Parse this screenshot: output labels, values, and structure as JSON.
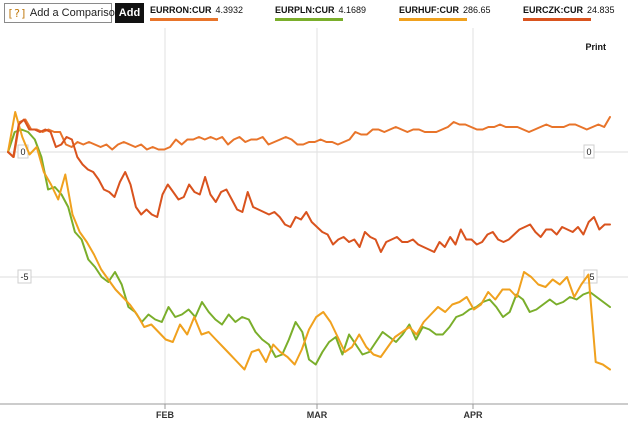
{
  "toolbar": {
    "help_icon": "[?]",
    "compare_placeholder": "Add a Comparison",
    "add_label": "Add",
    "print_label": "Print"
  },
  "legend": [
    {
      "symbol": "EURRON:CUR",
      "value": "4.3932",
      "color": "#e8742a"
    },
    {
      "symbol": "EURPLN:CUR",
      "value": "4.1689",
      "color": "#7aae2b"
    },
    {
      "symbol": "EURHUF:CUR",
      "value": "286.65",
      "color": "#f0a11e"
    },
    {
      "symbol": "EURCZK:CUR",
      "value": "24.835",
      "color": "#d9531e"
    }
  ],
  "chart_data": {
    "type": "line",
    "x_ticks": [
      "FEB",
      "MAR",
      "APR"
    ],
    "y_ticks": [
      0,
      -5
    ],
    "ylim": [
      -10,
      2
    ],
    "grid": true,
    "series": [
      {
        "name": "EURRON:CUR",
        "color": "#e8742a",
        "values": [
          0,
          -0.2,
          1.2,
          1.3,
          0.9,
          0.9,
          0.8,
          0.9,
          0.8,
          0.8,
          0.3,
          0.2,
          0.4,
          0.3,
          0.4,
          0.3,
          0.2,
          0.3,
          0.1,
          0.3,
          0.4,
          0.3,
          0.2,
          0.3,
          0.1,
          0.2,
          0.1,
          0.1,
          0.2,
          0.5,
          0.3,
          0.5,
          0.5,
          0.6,
          0.5,
          0.6,
          0.5,
          0.6,
          0.3,
          0.5,
          0.6,
          0.4,
          0.5,
          0.5,
          0.6,
          0.3,
          0.4,
          0.5,
          0.6,
          0.5,
          0.3,
          0.3,
          0.4,
          0.4,
          0.5,
          0.4,
          0.4,
          0.3,
          0.4,
          0.5,
          0.8,
          0.7,
          0.7,
          0.9,
          0.9,
          0.8,
          0.9,
          1.0,
          0.9,
          0.8,
          0.9,
          0.9,
          0.8,
          0.8,
          0.8,
          0.9,
          1.0,
          1.2,
          1.1,
          1.1,
          1.0,
          0.9,
          0.9,
          1.0,
          1.0,
          1.1,
          1.0,
          1.0,
          1.0,
          0.9,
          0.8,
          0.9,
          1.0,
          1.1,
          1.0,
          1.0,
          1.0,
          1.1,
          1.1,
          1.0,
          0.9,
          1.0,
          1.1,
          1.0,
          1.4
        ]
      },
      {
        "name": "EURPLN:CUR",
        "color": "#7aae2b",
        "values": [
          0,
          0.8,
          0.9,
          0.8,
          0.5,
          -0.2,
          -1.5,
          -1.4,
          -1.7,
          -2.2,
          -3.2,
          -3.5,
          -4.3,
          -4.6,
          -5.0,
          -5.2,
          -4.8,
          -5.3,
          -6.2,
          -6.4,
          -6.8,
          -6.5,
          -6.7,
          -6.8,
          -6.2,
          -6.6,
          -6.5,
          -6.3,
          -6.6,
          -6.0,
          -6.4,
          -6.7,
          -6.9,
          -6.5,
          -6.8,
          -6.6,
          -6.7,
          -7.2,
          -7.5,
          -7.7,
          -8.2,
          -8.1,
          -7.5,
          -6.8,
          -7.2,
          -8.3,
          -8.5,
          -8.0,
          -7.6,
          -7.4,
          -8.1,
          -7.3,
          -7.7,
          -8.1,
          -8.0,
          -7.6,
          -7.2,
          -7.4,
          -7.6,
          -7.3,
          -6.9,
          -7.5,
          -7.0,
          -7.1,
          -7.3,
          -7.3,
          -7.0,
          -6.6,
          -6.5,
          -6.3,
          -6.2,
          -6.0,
          -5.9,
          -6.2,
          -6.6,
          -6.4,
          -5.7,
          -5.9,
          -6.4,
          -6.3,
          -6.1,
          -5.9,
          -6.1,
          -6.0,
          -5.8,
          -5.9,
          -5.7,
          -5.6,
          -5.8,
          -6.0,
          -6.2
        ]
      },
      {
        "name": "EURHUF:CUR",
        "color": "#f0a11e",
        "values": [
          0,
          1.6,
          0.6,
          -0.1,
          0.2,
          -0.8,
          -1.3,
          -1.9,
          -0.9,
          -2.5,
          -3.2,
          -3.6,
          -4.1,
          -4.7,
          -5.1,
          -5.5,
          -5.8,
          -6.1,
          -6.5,
          -7.0,
          -6.9,
          -7.2,
          -7.5,
          -7.6,
          -6.9,
          -7.3,
          -6.6,
          -7.3,
          -7.2,
          -7.5,
          -7.8,
          -8.1,
          -8.4,
          -8.7,
          -8.0,
          -7.9,
          -8.4,
          -7.7,
          -8.0,
          -8.2,
          -8.5,
          -7.9,
          -7.1,
          -6.6,
          -6.4,
          -6.8,
          -7.4,
          -8.0,
          -7.8,
          -7.3,
          -7.8,
          -8.1,
          -8.2,
          -7.8,
          -7.4,
          -7.2,
          -7.0,
          -7.3,
          -6.8,
          -6.5,
          -6.2,
          -6.4,
          -6.1,
          -6.0,
          -5.8,
          -6.3,
          -6.1,
          -5.6,
          -5.9,
          -5.5,
          -5.5,
          -5.8,
          -4.8,
          -5.0,
          -5.3,
          -5.4,
          -5.1,
          -5.3,
          -5.0,
          -5.8,
          -5.3,
          -4.9,
          -8.4,
          -8.5,
          -8.7
        ]
      },
      {
        "name": "EURCZK:CUR",
        "color": "#d9531e",
        "values": [
          0,
          -0.2,
          1.1,
          1.3,
          0.9,
          0.9,
          0.8,
          0.9,
          0.8,
          0.2,
          0.3,
          0.6,
          0.5,
          -0.2,
          -0.5,
          -0.7,
          -0.8,
          -1.1,
          -1.5,
          -1.6,
          -1.8,
          -1.2,
          -0.8,
          -1.3,
          -2.2,
          -2.5,
          -2.3,
          -2.5,
          -2.6,
          -1.7,
          -1.3,
          -1.6,
          -1.9,
          -1.8,
          -1.3,
          -1.6,
          -1.7,
          -1.0,
          -1.7,
          -2.0,
          -1.6,
          -1.5,
          -1.9,
          -2.3,
          -2.4,
          -1.6,
          -2.2,
          -2.3,
          -2.4,
          -2.5,
          -2.4,
          -2.6,
          -2.9,
          -3.0,
          -2.6,
          -2.7,
          -2.4,
          -2.8,
          -3.0,
          -3.2,
          -3.3,
          -3.7,
          -3.5,
          -3.4,
          -3.6,
          -3.5,
          -3.8,
          -3.2,
          -3.4,
          -3.5,
          -4.0,
          -3.6,
          -3.5,
          -3.4,
          -3.6,
          -3.6,
          -3.5,
          -3.7,
          -3.8,
          -3.9,
          -4.0,
          -3.6,
          -3.8,
          -3.4,
          -3.7,
          -3.1,
          -3.5,
          -3.5,
          -3.7,
          -3.6,
          -3.3,
          -3.2,
          -3.5,
          -3.6,
          -3.5,
          -3.3,
          -3.1,
          -3.0,
          -2.9,
          -3.2,
          -3.4,
          -3.1,
          -3.1,
          -3.3,
          -3.0,
          -3.1,
          -3.2,
          -3.0,
          -3.3,
          -2.8,
          -2.6,
          -3.1,
          -2.9,
          -2.9
        ]
      }
    ]
  }
}
